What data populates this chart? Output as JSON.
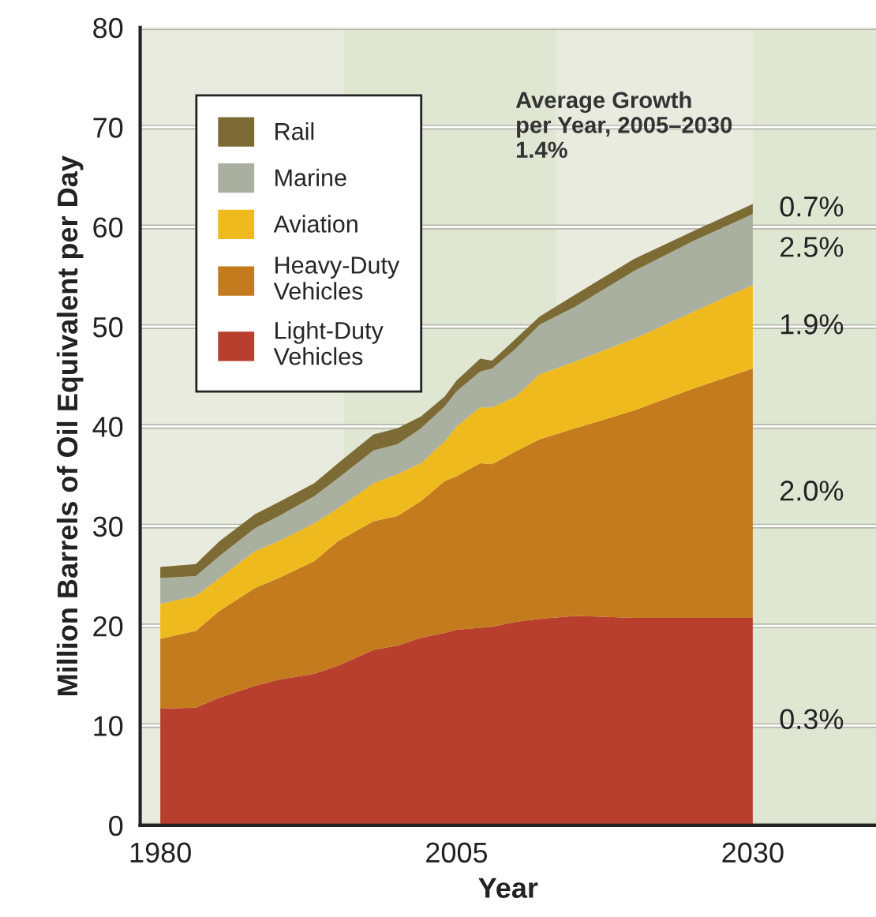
{
  "chart_data": {
    "type": "area",
    "stacked": true,
    "xlabel": "Year",
    "ylabel": "Million Barrels of Oil Equivalent per Day",
    "x": [
      1980,
      1983,
      1985,
      1988,
      1990,
      1993,
      1995,
      1998,
      2000,
      2002,
      2004,
      2005,
      2007,
      2008,
      2010,
      2012,
      2015,
      2020,
      2025,
      2030
    ],
    "series": [
      {
        "name": "Light-Duty\nVehicles",
        "color": "#b83f2e",
        "values": [
          11.7,
          11.8,
          12.8,
          14.0,
          14.6,
          15.2,
          16.0,
          17.6,
          18.0,
          18.8,
          19.3,
          19.6,
          19.8,
          19.9,
          20.4,
          20.7,
          21.0,
          20.8,
          20.8,
          20.8
        ]
      },
      {
        "name": "Heavy-Duty\nVehicles",
        "color": "#c47b1e",
        "values": [
          7.0,
          7.7,
          8.7,
          9.8,
          10.2,
          11.3,
          12.5,
          12.9,
          13.0,
          13.7,
          15.2,
          15.4,
          16.5,
          16.3,
          17.1,
          18.0,
          18.8,
          20.8,
          23.0,
          25.0
        ]
      },
      {
        "name": "Aviation",
        "color": "#efba1e",
        "values": [
          3.5,
          3.5,
          3.3,
          3.7,
          3.7,
          3.8,
          3.3,
          3.8,
          4.2,
          3.8,
          4.0,
          5.0,
          5.6,
          5.7,
          5.5,
          6.5,
          6.7,
          7.2,
          7.7,
          8.4
        ]
      },
      {
        "name": "Marine",
        "color": "#a9b0a0",
        "values": [
          2.6,
          2.0,
          2.2,
          2.3,
          2.5,
          2.7,
          3.0,
          3.3,
          3.0,
          3.5,
          3.5,
          3.5,
          3.6,
          3.9,
          4.8,
          5.0,
          5.5,
          6.8,
          7.1,
          7.1
        ]
      },
      {
        "name": "Rail",
        "color": "#7d6b35",
        "values": [
          1.1,
          1.2,
          1.5,
          1.4,
          1.4,
          1.3,
          1.5,
          1.6,
          1.6,
          1.2,
          1.0,
          1.1,
          1.3,
          0.8,
          1.0,
          0.8,
          1.2,
          1.2,
          1.0,
          1.0
        ]
      }
    ],
    "xlim": [
      1978.3,
      2040.4
    ],
    "ylim": [
      0,
      80
    ],
    "xticks": [
      1980,
      2005,
      2030
    ],
    "yticks": [
      0,
      10,
      20,
      30,
      40,
      50,
      60,
      70,
      80
    ],
    "grid": "y",
    "legend": "top left",
    "bands": [
      {
        "axis": "x",
        "from": 1995.5,
        "to": 2013.4,
        "color": "#dfe6d2"
      },
      {
        "axis": "x",
        "from": 2030,
        "to": 2040.4,
        "color": "#dfe6d2"
      }
    ],
    "annotations": [
      "Average Growth\nper Year, 2005–2030\n1.4%",
      "0.7%",
      "2.5%",
      "1.9%",
      "2.0%",
      "0.3%"
    ]
  }
}
